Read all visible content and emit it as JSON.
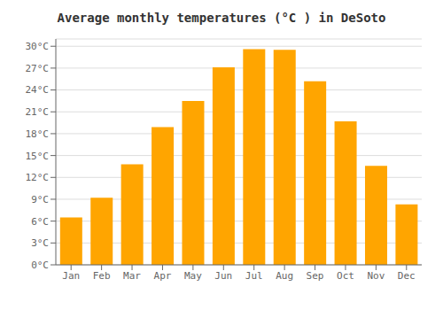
{
  "chart_data": {
    "type": "bar",
    "title": "Average monthly temperatures (°C ) in DeSoto",
    "categories": [
      "Jan",
      "Feb",
      "Mar",
      "Apr",
      "May",
      "Jun",
      "Jul",
      "Aug",
      "Sep",
      "Oct",
      "Nov",
      "Dec"
    ],
    "values": [
      6.5,
      9.2,
      13.8,
      18.9,
      22.5,
      27.1,
      29.6,
      29.5,
      25.2,
      19.7,
      13.6,
      8.3
    ],
    "color": "#FFA500",
    "ylim": [
      0,
      31
    ],
    "yticks": [
      {
        "value": 0,
        "label": "0°C"
      },
      {
        "value": 3,
        "label": "3°C"
      },
      {
        "value": 6,
        "label": "6°C"
      },
      {
        "value": 9,
        "label": "9°C"
      },
      {
        "value": 12,
        "label": "12°C"
      },
      {
        "value": 15,
        "label": "15°C"
      },
      {
        "value": 18,
        "label": "18°C"
      },
      {
        "value": 21,
        "label": "21°C"
      },
      {
        "value": 24,
        "label": "24°C"
      },
      {
        "value": 27,
        "label": "27°C"
      },
      {
        "value": 30,
        "label": "30°C"
      }
    ],
    "grid": true
  }
}
